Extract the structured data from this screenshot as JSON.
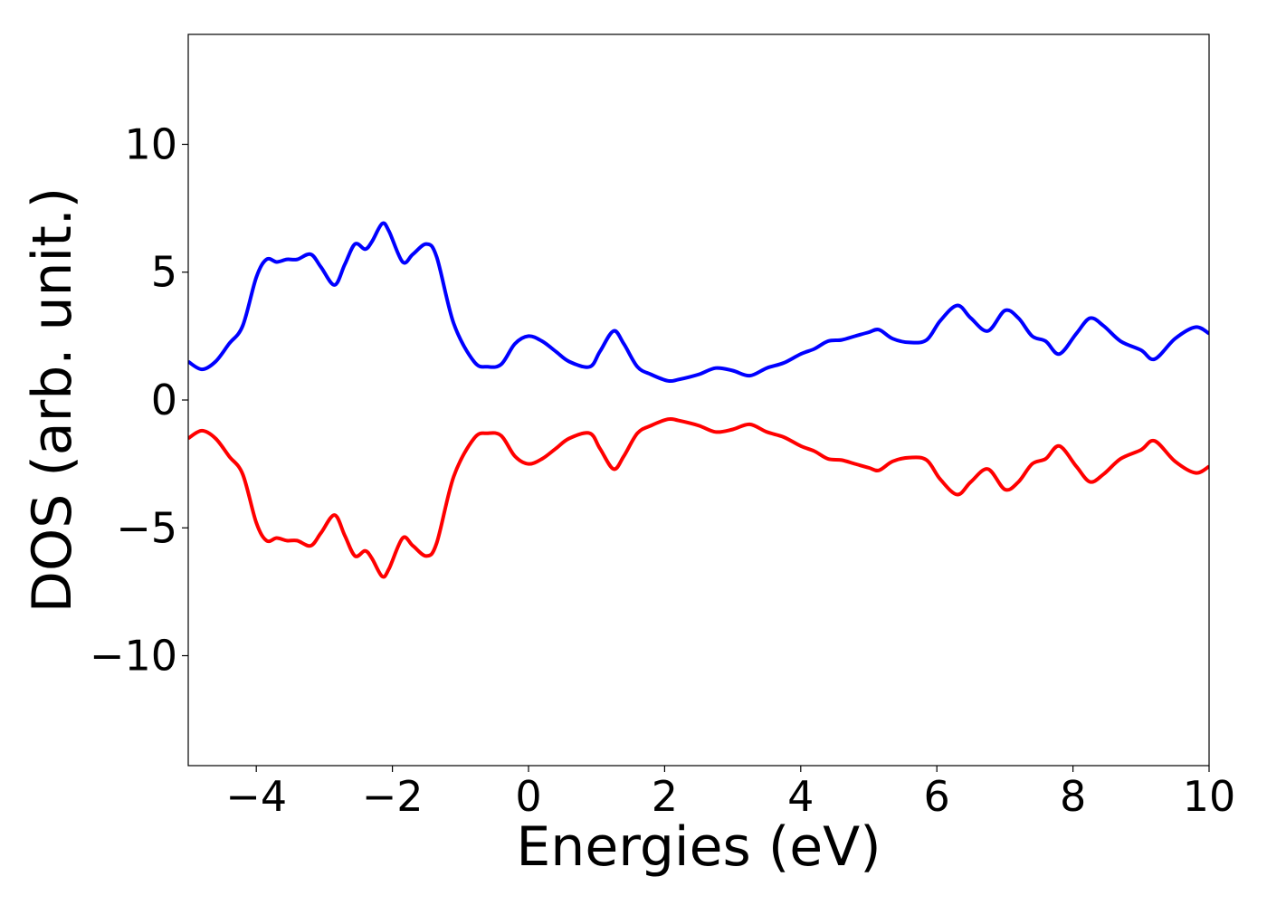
{
  "chart_data": {
    "type": "line",
    "title": "",
    "xlabel": "Energies (eV)",
    "ylabel": "DOS (arb. unit.)",
    "xlim": [
      -5,
      10
    ],
    "ylim": [
      -14.3,
      14.3
    ],
    "xticks": [
      -4,
      -2,
      0,
      2,
      4,
      6,
      8,
      10
    ],
    "xtick_labels": [
      "−4",
      "−2",
      "0",
      "2",
      "4",
      "6",
      "8",
      "10"
    ],
    "yticks": [
      -10,
      -5,
      0,
      5,
      10
    ],
    "ytick_labels": [
      "−10",
      "−5",
      "0",
      "5",
      "10"
    ],
    "grid": false,
    "legend": "none",
    "series": [
      {
        "color": "#0000ff",
        "x": [
          -5.0,
          -4.8,
          -4.6,
          -4.4,
          -4.2,
          -4.0,
          -3.85,
          -3.7,
          -3.55,
          -3.4,
          -3.2,
          -3.05,
          -2.85,
          -2.7,
          -2.55,
          -2.4,
          -2.3,
          -2.15,
          -2.05,
          -1.85,
          -1.7,
          -1.5,
          -1.35,
          -1.1,
          -0.8,
          -0.6,
          -0.4,
          -0.2,
          0.0,
          0.2,
          0.4,
          0.6,
          0.9,
          1.05,
          1.25,
          1.4,
          1.6,
          1.8,
          2.05,
          2.2,
          2.5,
          2.75,
          3.0,
          3.25,
          3.5,
          3.75,
          4.0,
          4.2,
          4.4,
          4.6,
          4.8,
          5.0,
          5.15,
          5.35,
          5.6,
          5.85,
          6.05,
          6.3,
          6.5,
          6.75,
          7.0,
          7.2,
          7.4,
          7.6,
          7.8,
          8.05,
          8.25,
          8.45,
          8.7,
          9.0,
          9.2,
          9.5,
          9.8,
          10.0
        ],
        "y": [
          1.5,
          1.2,
          1.5,
          2.2,
          2.9,
          4.8,
          5.5,
          5.4,
          5.5,
          5.5,
          5.7,
          5.2,
          4.5,
          5.3,
          6.1,
          5.9,
          6.2,
          6.9,
          6.6,
          5.4,
          5.7,
          6.1,
          5.6,
          3.0,
          1.5,
          1.3,
          1.4,
          2.2,
          2.5,
          2.3,
          1.9,
          1.5,
          1.3,
          1.9,
          2.7,
          2.2,
          1.3,
          1.0,
          0.75,
          0.8,
          1.0,
          1.25,
          1.15,
          0.95,
          1.25,
          1.45,
          1.8,
          2.0,
          2.3,
          2.35,
          2.5,
          2.65,
          2.75,
          2.4,
          2.25,
          2.35,
          3.1,
          3.7,
          3.2,
          2.7,
          3.5,
          3.2,
          2.5,
          2.3,
          1.8,
          2.6,
          3.2,
          2.9,
          2.3,
          1.95,
          1.6,
          2.4,
          2.85,
          2.6
        ]
      },
      {
        "color": "#ff0000",
        "x": [
          -5.0,
          -4.8,
          -4.6,
          -4.4,
          -4.2,
          -4.0,
          -3.85,
          -3.7,
          -3.55,
          -3.4,
          -3.2,
          -3.05,
          -2.85,
          -2.7,
          -2.55,
          -2.4,
          -2.3,
          -2.15,
          -2.05,
          -1.85,
          -1.7,
          -1.5,
          -1.35,
          -1.1,
          -0.8,
          -0.6,
          -0.4,
          -0.2,
          0.0,
          0.2,
          0.4,
          0.6,
          0.9,
          1.05,
          1.25,
          1.4,
          1.6,
          1.8,
          2.05,
          2.2,
          2.5,
          2.75,
          3.0,
          3.25,
          3.5,
          3.75,
          4.0,
          4.2,
          4.4,
          4.6,
          4.8,
          5.0,
          5.15,
          5.35,
          5.6,
          5.85,
          6.05,
          6.3,
          6.5,
          6.75,
          7.0,
          7.2,
          7.4,
          7.6,
          7.8,
          8.05,
          8.25,
          8.45,
          8.7,
          9.0,
          9.2,
          9.5,
          9.8,
          10.0
        ],
        "y": [
          -1.5,
          -1.2,
          -1.5,
          -2.2,
          -2.9,
          -4.8,
          -5.5,
          -5.4,
          -5.5,
          -5.5,
          -5.7,
          -5.2,
          -4.5,
          -5.3,
          -6.1,
          -5.9,
          -6.2,
          -6.9,
          -6.6,
          -5.4,
          -5.7,
          -6.1,
          -5.6,
          -3.0,
          -1.5,
          -1.3,
          -1.4,
          -2.2,
          -2.5,
          -2.3,
          -1.9,
          -1.5,
          -1.3,
          -1.9,
          -2.7,
          -2.2,
          -1.3,
          -1.0,
          -0.75,
          -0.8,
          -1.0,
          -1.25,
          -1.15,
          -0.95,
          -1.25,
          -1.45,
          -1.8,
          -2.0,
          -2.3,
          -2.35,
          -2.5,
          -2.65,
          -2.75,
          -2.4,
          -2.25,
          -2.35,
          -3.1,
          -3.7,
          -3.2,
          -2.7,
          -3.5,
          -3.2,
          -2.5,
          -2.3,
          -1.8,
          -2.6,
          -3.2,
          -2.9,
          -2.3,
          -1.95,
          -1.6,
          -2.4,
          -2.85,
          -2.6
        ]
      }
    ]
  }
}
